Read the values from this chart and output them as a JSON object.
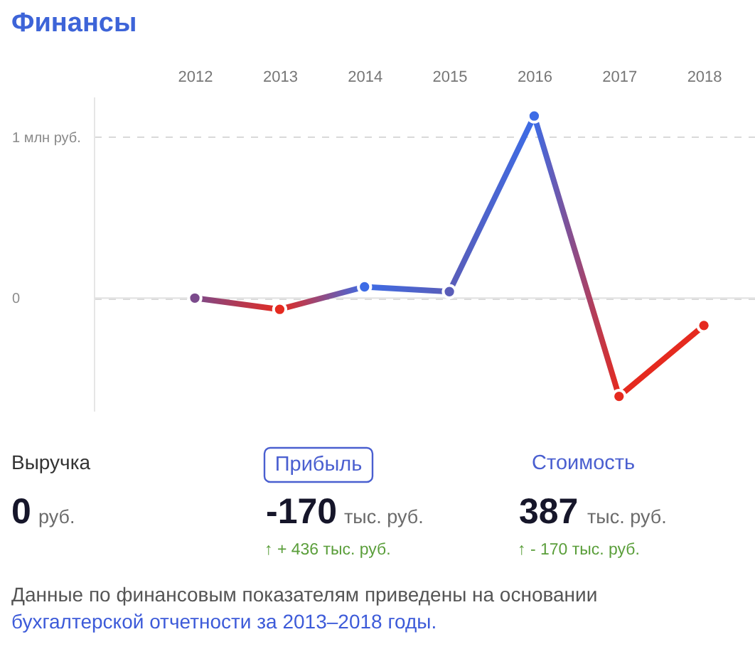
{
  "chart_data": {
    "type": "line",
    "title": "Финансы",
    "categories": [
      "2012",
      "2013",
      "2014",
      "2015",
      "2016",
      "2017",
      "2018"
    ],
    "values": [
      0,
      -0.07,
      0.07,
      0.04,
      1.13,
      -0.61,
      -0.17
    ],
    "colors": [
      "#7b4a8c",
      "#e52a1f",
      "#3d6ce6",
      "#5a5db8",
      "#3d6ce6",
      "#e52a1f",
      "#e52a1f"
    ],
    "ylim": [
      -0.7,
      1.25
    ],
    "yticks": [
      0,
      {
        "value": 1,
        "label": "1 млн руб."
      }
    ],
    "grid": "y",
    "marker": "circle",
    "line_style": "solid",
    "ref_lines": [
      {
        "axis": "y",
        "value": 0,
        "color": "#e3e3e3",
        "line_style": "solid"
      }
    ],
    "annotations": [
      "Выручка",
      "0",
      "руб.",
      "Прибыль",
      "-170",
      "тыс. руб.",
      "↑ + 436 тыс. руб.",
      "Стоимость",
      "387",
      "тыс. руб.",
      "↑ - 170 тыс. руб.",
      "Данные по финансовым показателям приведены на основании",
      "бухгалтерской отчетности за 2013–2018 годы."
    ]
  }
}
